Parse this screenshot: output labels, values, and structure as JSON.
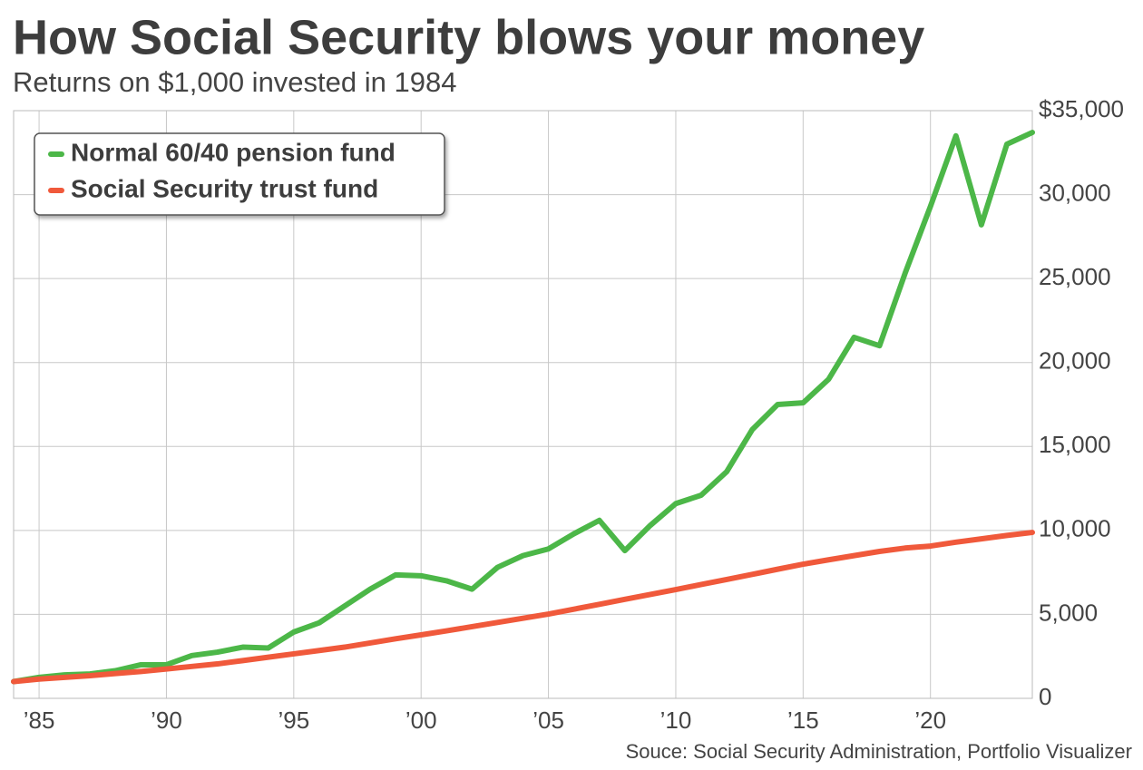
{
  "chart_data": {
    "type": "line",
    "title": "How Social Security blows your money",
    "subtitle": "Returns on $1,000 invested in 1984",
    "source": "Souce: Social Security Administration, Portfolio Visualizer",
    "x": [
      1984,
      1985,
      1986,
      1987,
      1988,
      1989,
      1990,
      1991,
      1992,
      1993,
      1994,
      1995,
      1996,
      1997,
      1998,
      1999,
      2000,
      2001,
      2002,
      2003,
      2004,
      2005,
      2006,
      2007,
      2008,
      2009,
      2010,
      2011,
      2012,
      2013,
      2014,
      2015,
      2016,
      2017,
      2018,
      2019,
      2020,
      2021,
      2022,
      2023,
      2024
    ],
    "series": [
      {
        "name": "Normal 60/40 pension fund",
        "color": "#4cb748",
        "values": [
          1000,
          1250,
          1400,
          1450,
          1650,
          2000,
          2000,
          2550,
          2750,
          3050,
          3000,
          3950,
          4500,
          5500,
          6500,
          7350,
          7300,
          7000,
          6500,
          7800,
          8500,
          8900,
          9800,
          10600,
          8800,
          10300,
          11600,
          12100,
          13500,
          16000,
          17500,
          17600,
          19000,
          21500,
          21000,
          25300,
          29300,
          33500,
          28200,
          33000,
          33700
        ]
      },
      {
        "name": "Social Security trust fund",
        "color": "#f0593b",
        "values": [
          1000,
          1150,
          1250,
          1350,
          1480,
          1600,
          1750,
          1900,
          2050,
          2250,
          2450,
          2650,
          2850,
          3050,
          3300,
          3550,
          3780,
          4020,
          4270,
          4520,
          4770,
          5020,
          5310,
          5600,
          5900,
          6190,
          6480,
          6780,
          7080,
          7380,
          7690,
          7990,
          8250,
          8500,
          8750,
          8950,
          9070,
          9300,
          9500,
          9700,
          9880
        ]
      }
    ],
    "xlim": [
      1984,
      2024
    ],
    "xticks": [
      {
        "value": 1985,
        "label": "’85"
      },
      {
        "value": 1990,
        "label": "’90"
      },
      {
        "value": 1995,
        "label": "’95"
      },
      {
        "value": 2000,
        "label": "’00"
      },
      {
        "value": 2005,
        "label": "’05"
      },
      {
        "value": 2010,
        "label": "’10"
      },
      {
        "value": 2015,
        "label": "’15"
      },
      {
        "value": 2020,
        "label": "’20"
      }
    ],
    "ylim": [
      0,
      35000
    ],
    "yticks": [
      0,
      {
        "value": 5000,
        "label": "5,000"
      },
      {
        "value": 10000,
        "label": "10,000"
      },
      {
        "value": 15000,
        "label": "15,000"
      },
      {
        "value": 20000,
        "label": "20,000"
      },
      {
        "value": 25000,
        "label": "25,000"
      },
      {
        "value": 30000,
        "label": "30,000"
      },
      {
        "value": 35000,
        "label": "$35,000"
      }
    ],
    "grid": true,
    "legend": "upper left"
  }
}
